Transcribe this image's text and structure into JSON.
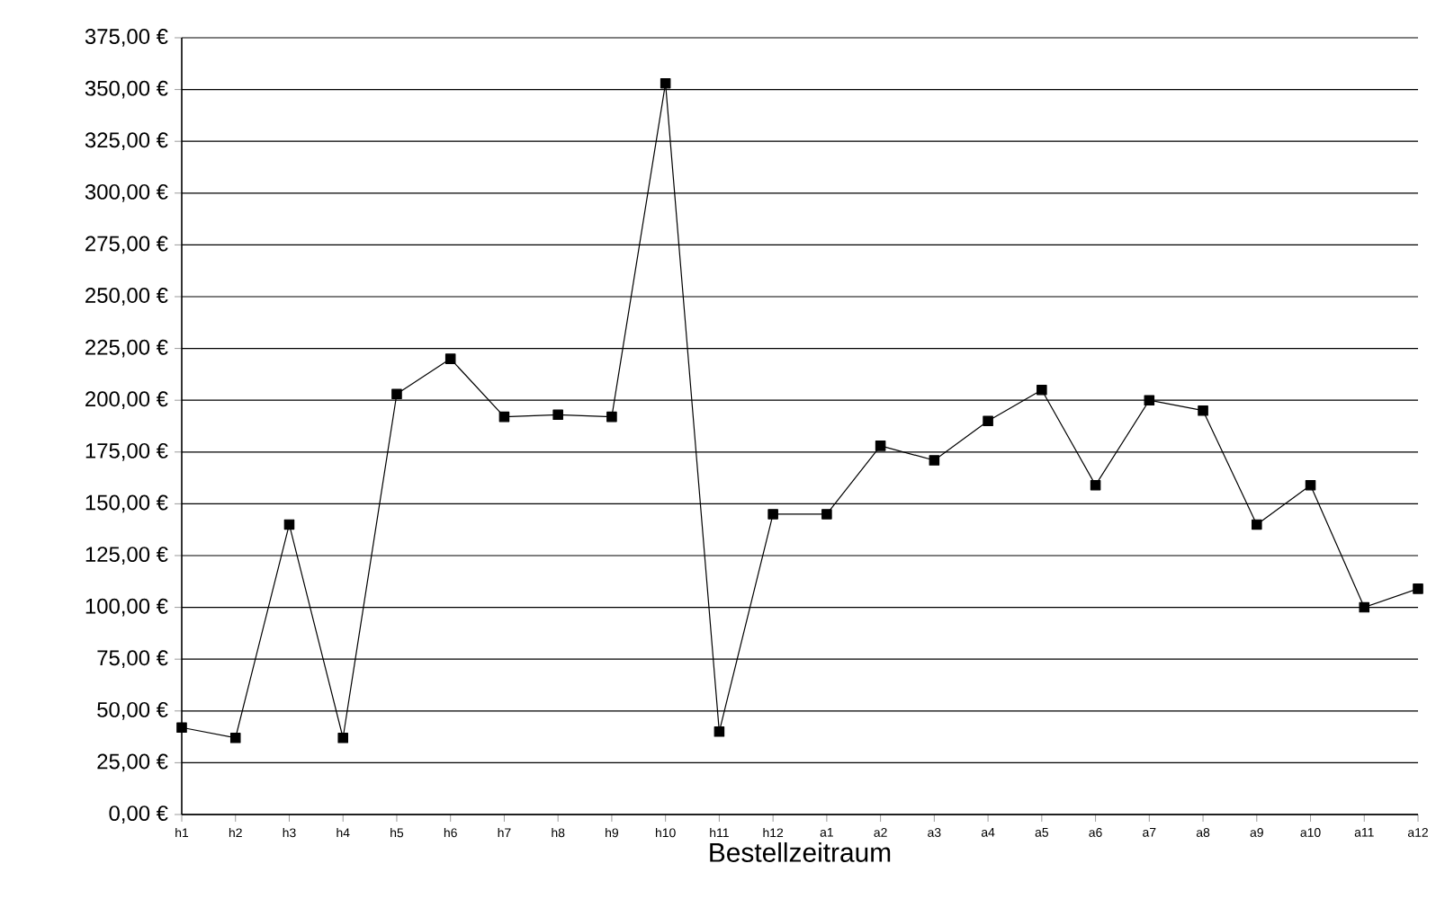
{
  "chart_data": {
    "type": "line",
    "xlabel": "Bestellzeitraum",
    "categories": [
      "h1",
      "h2",
      "h3",
      "h4",
      "h5",
      "h6",
      "h7",
      "h8",
      "h9",
      "h10",
      "h11",
      "h12",
      "a1",
      "a2",
      "a3",
      "a4",
      "a5",
      "a6",
      "a7",
      "a8",
      "a9",
      "a10",
      "a11",
      "a12"
    ],
    "series": [
      {
        "color": "#000000",
        "values": [
          42,
          37,
          140,
          37,
          203,
          220,
          192,
          193,
          192,
          353,
          40,
          145,
          145,
          178,
          171,
          190,
          205,
          159,
          200,
          195,
          140,
          159,
          100,
          109
        ]
      }
    ],
    "ylim": [
      0,
      375
    ],
    "yticks": [
      {
        "value": 0,
        "label": "0,00 €"
      },
      {
        "value": 25,
        "label": "25,00 €"
      },
      {
        "value": 50,
        "label": "50,00 €"
      },
      {
        "value": 75,
        "label": "75,00 €"
      },
      {
        "value": 100,
        "label": "100,00 €"
      },
      {
        "value": 125,
        "label": "125,00 €"
      },
      {
        "value": 150,
        "label": "150,00 €"
      },
      {
        "value": 175,
        "label": "175,00 €"
      },
      {
        "value": 200,
        "label": "200,00 €"
      },
      {
        "value": 225,
        "label": "225,00 €"
      },
      {
        "value": 250,
        "label": "250,00 €"
      },
      {
        "value": 275,
        "label": "275,00 €"
      },
      {
        "value": 300,
        "label": "300,00 €"
      },
      {
        "value": 325,
        "label": "325,00 €"
      },
      {
        "value": 350,
        "label": "350,00 €"
      },
      {
        "value": 375,
        "label": "375,00 €"
      }
    ],
    "grid": "y",
    "marker": "square",
    "line_style": "solid"
  }
}
